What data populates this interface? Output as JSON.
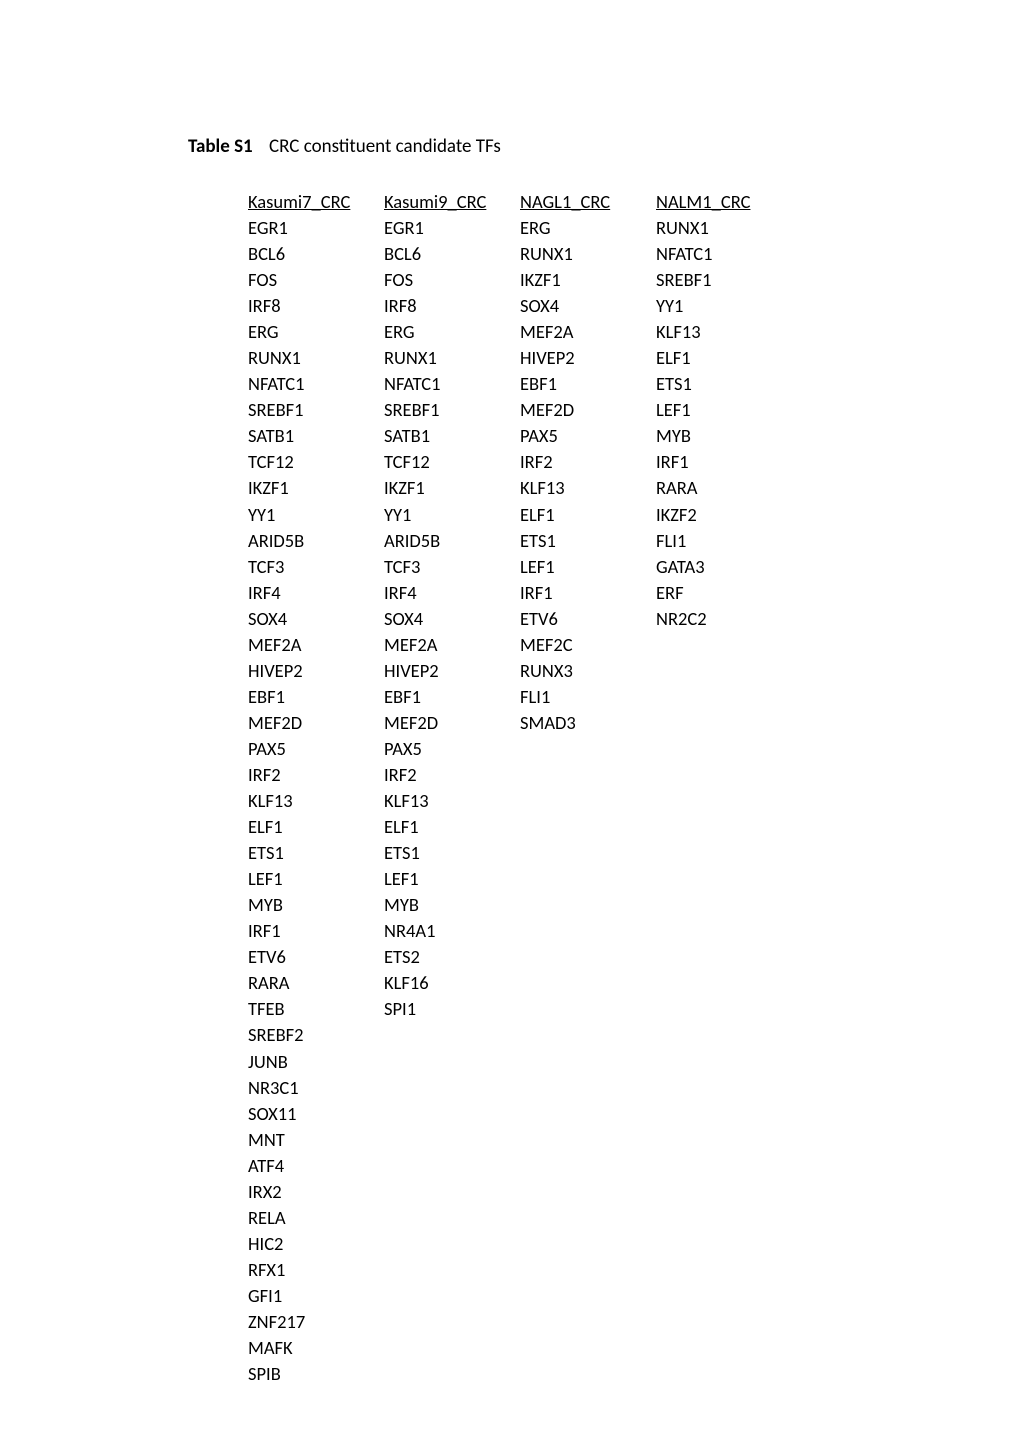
{
  "title": {
    "label": "Table S1",
    "caption": "CRC constituent  candidate TFs"
  },
  "table": {
    "columns": [
      {
        "header": "Kasumi7_CRC"
      },
      {
        "header": "Kasumi9_CRC"
      },
      {
        "header": "NAGL1_CRC"
      },
      {
        "header": "NALM1_CRC"
      }
    ],
    "rows": [
      [
        "EGR1",
        "EGR1",
        "ERG",
        "RUNX1"
      ],
      [
        "BCL6",
        "BCL6",
        "RUNX1",
        "NFATC1"
      ],
      [
        "FOS",
        "FOS",
        "IKZF1",
        "SREBF1"
      ],
      [
        "IRF8",
        "IRF8",
        "SOX4",
        "YY1"
      ],
      [
        "ERG",
        "ERG",
        "MEF2A",
        "KLF13"
      ],
      [
        "RUNX1",
        "RUNX1",
        "HIVEP2",
        "ELF1"
      ],
      [
        "NFATC1",
        "NFATC1",
        "EBF1",
        "ETS1"
      ],
      [
        "SREBF1",
        "SREBF1",
        "MEF2D",
        "LEF1"
      ],
      [
        "SATB1",
        "SATB1",
        "PAX5",
        "MYB"
      ],
      [
        "TCF12",
        "TCF12",
        "IRF2",
        "IRF1"
      ],
      [
        "IKZF1",
        "IKZF1",
        "KLF13",
        "RARA"
      ],
      [
        "YY1",
        "YY1",
        "ELF1",
        "IKZF2"
      ],
      [
        "ARID5B",
        "ARID5B",
        "ETS1",
        "FLI1"
      ],
      [
        "TCF3",
        "TCF3",
        "LEF1",
        "GATA3"
      ],
      [
        "IRF4",
        "IRF4",
        "IRF1",
        "ERF"
      ],
      [
        "SOX4",
        "SOX4",
        "ETV6",
        "NR2C2"
      ],
      [
        "MEF2A",
        "MEF2A",
        "MEF2C",
        ""
      ],
      [
        "HIVEP2",
        "HIVEP2",
        "RUNX3",
        ""
      ],
      [
        "EBF1",
        "EBF1",
        "FLI1",
        ""
      ],
      [
        "MEF2D",
        "MEF2D",
        "SMAD3",
        ""
      ],
      [
        "PAX5",
        "PAX5",
        "",
        ""
      ],
      [
        "IRF2",
        "IRF2",
        "",
        ""
      ],
      [
        "KLF13",
        "KLF13",
        "",
        ""
      ],
      [
        "ELF1",
        "ELF1",
        "",
        ""
      ],
      [
        "ETS1",
        "ETS1",
        "",
        ""
      ],
      [
        "LEF1",
        "LEF1",
        "",
        ""
      ],
      [
        "MYB",
        "MYB",
        "",
        ""
      ],
      [
        "IRF1",
        "NR4A1",
        "",
        ""
      ],
      [
        "ETV6",
        "ETS2",
        "",
        ""
      ],
      [
        "RARA",
        "KLF16",
        "",
        ""
      ],
      [
        "TFEB",
        "SPI1",
        "",
        ""
      ],
      [
        "SREBF2",
        "",
        "",
        ""
      ],
      [
        "JUNB",
        "",
        "",
        ""
      ],
      [
        "NR3C1",
        "",
        "",
        ""
      ],
      [
        "SOX11",
        "",
        "",
        ""
      ],
      [
        "MNT",
        "",
        "",
        ""
      ],
      [
        "ATF4",
        "",
        "",
        ""
      ],
      [
        "IRX2",
        "",
        "",
        ""
      ],
      [
        "RELA",
        "",
        "",
        ""
      ],
      [
        "HIC2",
        "",
        "",
        ""
      ],
      [
        "RFX1",
        "",
        "",
        ""
      ],
      [
        "GFI1",
        "",
        "",
        ""
      ],
      [
        "ZNF217",
        "",
        "",
        ""
      ],
      [
        "MAFK",
        "",
        "",
        ""
      ],
      [
        "SPIB",
        "",
        "",
        ""
      ]
    ]
  }
}
